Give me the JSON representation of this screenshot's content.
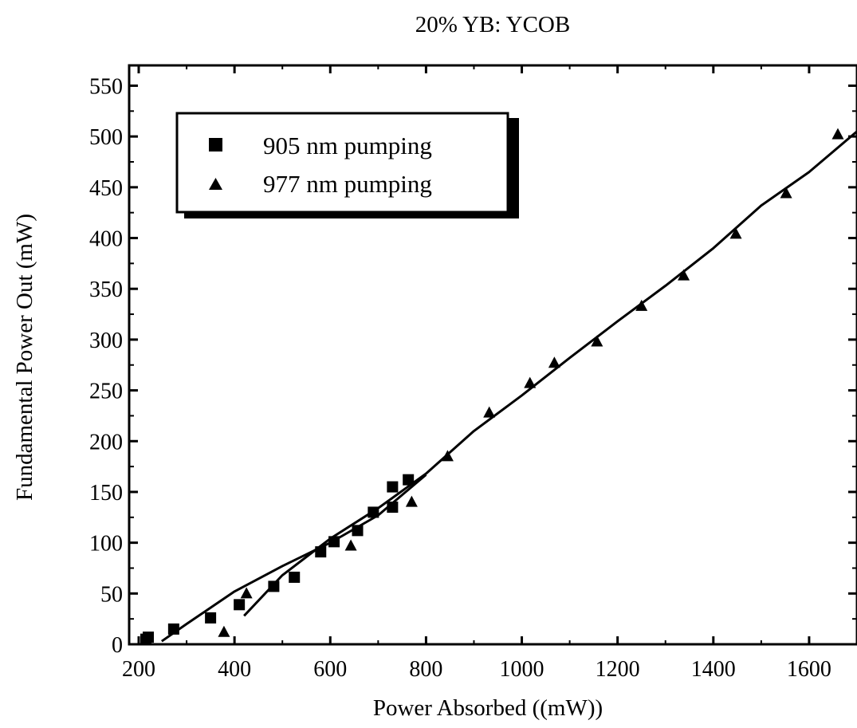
{
  "chart_data": {
    "type": "scatter",
    "title": "20% YB: YCOB",
    "xlabel": "Power Absorbed ((mW))",
    "ylabel": "Fundamental Power Out (mW)",
    "xlim": [
      180,
      1700
    ],
    "ylim": [
      0,
      570
    ],
    "xticks": [
      200,
      400,
      600,
      800,
      1000,
      1200,
      1400,
      1600
    ],
    "yticks": [
      0,
      50,
      100,
      150,
      200,
      250,
      300,
      350,
      400,
      450,
      500,
      550
    ],
    "grid": false,
    "legend_position": "top-left",
    "series": [
      {
        "name": "905 nm pumping",
        "marker": "square",
        "x": [
          215,
          220,
          273,
          350,
          410,
          482,
          525,
          580,
          608,
          657,
          690,
          730,
          730,
          763
        ],
        "y": [
          5,
          7,
          15,
          26,
          39,
          57,
          66,
          91,
          101,
          112,
          130,
          135,
          155,
          162
        ]
      },
      {
        "name": "977 nm pumping",
        "marker": "triangle",
        "x": [
          378,
          425,
          643,
          770,
          845,
          932,
          1017,
          1068,
          1157,
          1250,
          1338,
          1447,
          1552,
          1660
        ],
        "y": [
          12,
          50,
          97,
          140,
          185,
          228,
          257,
          277,
          298,
          333,
          363,
          404,
          444,
          502
        ]
      }
    ],
    "fit_lines": [
      {
        "x": [
          248,
          300,
          400,
          500,
          600,
          700,
          800
        ],
        "y": [
          3,
          20,
          52,
          77,
          100,
          127,
          167
        ]
      },
      {
        "x": [
          420,
          500,
          600,
          700,
          800,
          900,
          1000,
          1100,
          1200,
          1300,
          1400,
          1500,
          1600,
          1700
        ],
        "y": [
          28,
          68,
          104,
          134,
          168,
          210,
          245,
          282,
          318,
          353,
          390,
          432,
          465,
          505
        ]
      }
    ]
  }
}
